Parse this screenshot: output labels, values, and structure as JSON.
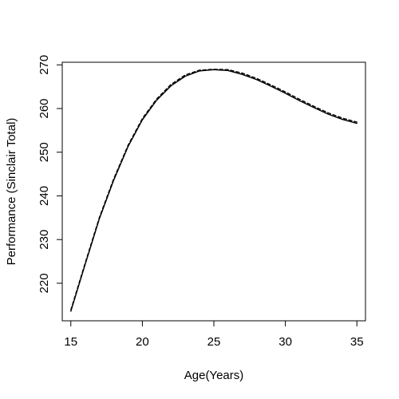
{
  "chart_data": {
    "type": "line",
    "xlabel": "Age(Years)",
    "ylabel": "Performance (Sinclair Total)",
    "xlim": [
      14.4,
      35.6
    ],
    "ylim": [
      211.4,
      270.6
    ],
    "x_ticks": [
      15,
      20,
      25,
      30,
      35
    ],
    "y_ticks": [
      220,
      230,
      240,
      250,
      260,
      270
    ],
    "x_tick_labels": [
      "15",
      "20",
      "25",
      "30",
      "35"
    ],
    "y_tick_labels": [
      "220",
      "230",
      "240",
      "250",
      "260",
      "270"
    ],
    "grid": false,
    "legend": "none",
    "series": [
      {
        "style": "solid",
        "x": [
          15,
          16,
          17,
          18,
          19,
          20,
          21,
          22,
          23,
          24,
          25,
          26,
          27,
          28,
          29,
          30,
          31,
          32,
          33,
          34,
          35
        ],
        "y": [
          213.6,
          224.3,
          234.8,
          243.6,
          251.3,
          257.4,
          261.9,
          265.2,
          267.4,
          268.6,
          268.9,
          268.7,
          267.8,
          266.6,
          265.1,
          263.5,
          261.8,
          260.2,
          258.7,
          257.5,
          256.6
        ]
      },
      {
        "style": "dashed",
        "x": [
          15,
          16,
          17,
          18,
          19,
          20,
          21,
          22,
          23,
          24,
          25,
          26,
          27,
          28,
          29,
          30,
          31,
          32,
          33,
          34,
          35
        ],
        "y": [
          213.9,
          224.6,
          235.1,
          243.9,
          251.6,
          257.7,
          262.2,
          265.5,
          267.7,
          268.8,
          269.0,
          268.9,
          268.1,
          266.9,
          265.4,
          263.8,
          262.1,
          260.5,
          259.0,
          257.8,
          256.9
        ]
      }
    ]
  }
}
